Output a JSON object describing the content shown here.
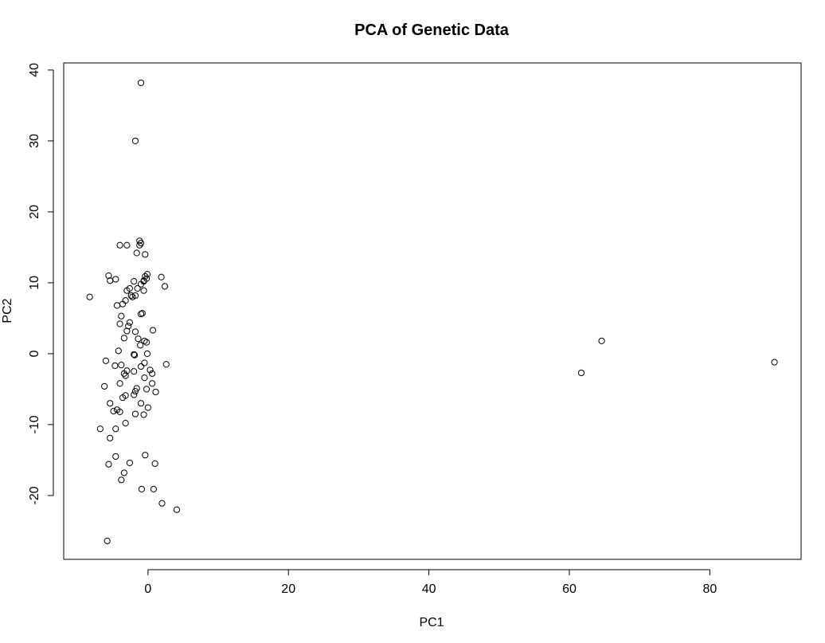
{
  "chart_data": {
    "type": "scatter",
    "title": "PCA of Genetic Data",
    "xlabel": "PC1",
    "ylabel": "PC2",
    "xlim": [
      -12,
      93
    ],
    "ylim": [
      -29,
      41
    ],
    "xticks": [
      0,
      20,
      40,
      60,
      80
    ],
    "yticks": [
      -20,
      -10,
      0,
      10,
      20,
      30,
      40
    ],
    "grid": false,
    "legend": "none",
    "x": [
      -1.0,
      -1.8,
      -1.2,
      -1.0,
      -1.2,
      -1.6,
      -0.4,
      -4.0,
      -3.0,
      1.9,
      -5.6,
      -0.1,
      -0.4,
      -0.2,
      -0.6,
      -5.4,
      -0.6,
      -4.6,
      -1.0,
      -2.0,
      2.4,
      -2.6,
      -1.5,
      -3.0,
      -2.4,
      -0.6,
      -2.2,
      -1.8,
      -3.2,
      -4.4,
      -3.6,
      -0.8,
      -1.0,
      -3.8,
      -2.6,
      -4.0,
      -2.8,
      -3.0,
      0.7,
      -1.8,
      -3.4,
      -1.4,
      -0.5,
      -0.2,
      -1.1,
      -4.2,
      -0.1,
      -2.0,
      -1.9,
      -6.0,
      -3.8,
      -4.7,
      2.6,
      -1.0,
      -0.5,
      -3.0,
      -3.4,
      0.3,
      -3.2,
      0.6,
      -2.0,
      -0.5,
      -6.2,
      -1.6,
      0.6,
      -4.0,
      -1.8,
      1.1,
      -0.2,
      -3.2,
      -2.0,
      -3.6,
      -5.4,
      -1.0,
      0.0,
      -4.4,
      -4.9,
      -4.0,
      -1.8,
      -0.6,
      -3.2,
      -6.8,
      -4.6,
      -5.4,
      -0.4,
      -4.6,
      -2.6,
      1.0,
      -5.6,
      -3.4,
      -3.8,
      -0.9,
      0.8,
      2.0,
      4.1,
      -5.8,
      -8.3,
      61.7,
      64.6,
      89.2
    ],
    "y": [
      38.2,
      30.0,
      15.9,
      15.6,
      15.3,
      14.2,
      14.0,
      15.3,
      15.3,
      10.8,
      11.0,
      11.2,
      10.9,
      10.6,
      10.3,
      10.3,
      10.2,
      10.5,
      9.8,
      10.2,
      9.5,
      9.2,
      9.2,
      8.9,
      8.2,
      8.9,
      8.0,
      8.2,
      7.5,
      6.8,
      7.0,
      5.7,
      5.6,
      5.3,
      4.4,
      4.2,
      3.9,
      3.2,
      3.3,
      3.1,
      2.2,
      2.1,
      1.8,
      1.6,
      1.2,
      0.4,
      0.0,
      -0.1,
      -0.2,
      -1.0,
      -1.6,
      -1.7,
      -1.5,
      -1.8,
      -1.3,
      -2.4,
      -2.8,
      -2.3,
      -3.1,
      -2.8,
      -2.5,
      -3.4,
      -4.6,
      -4.9,
      -4.2,
      -4.2,
      -5.3,
      -5.4,
      -5.0,
      -5.9,
      -5.8,
      -6.2,
      -7.0,
      -7.0,
      -7.6,
      -7.9,
      -8.1,
      -8.2,
      -8.5,
      -8.6,
      -9.8,
      -10.6,
      -10.6,
      -11.9,
      -14.3,
      -14.5,
      -15.4,
      -15.5,
      -15.6,
      -16.8,
      -17.8,
      -19.1,
      -19.1,
      -21.1,
      -22.0,
      -26.4,
      8.0,
      -2.7,
      1.8,
      -1.2
    ]
  }
}
